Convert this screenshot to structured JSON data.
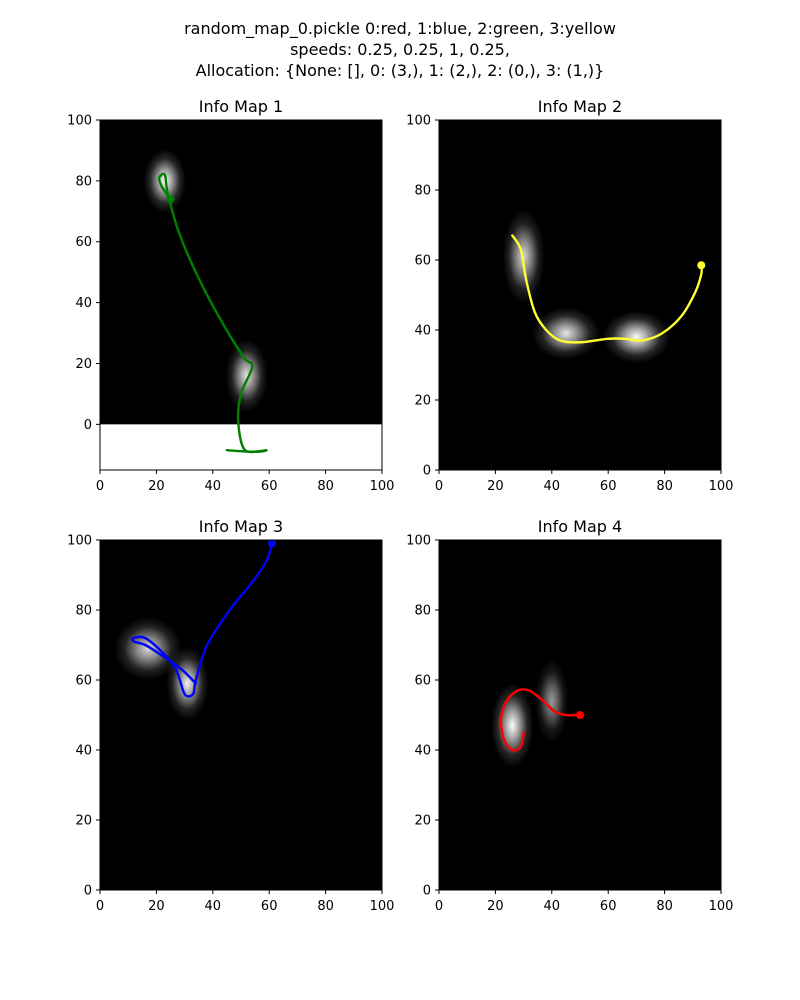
{
  "figure": {
    "suptitle_lines": [
      "random_map_0.pickle    0:red, 1:blue, 2:green, 3:yellow",
      "speeds: 0.25, 0.25, 1, 0.25,",
      "Allocation: {None: [], 0: (3,), 1: (2,), 2: (0,), 3: (1,)}"
    ]
  },
  "chart_data": [
    {
      "type": "heatmap",
      "title": "Info Map 1",
      "xlim": [
        0,
        100
      ],
      "ylim": [
        -15,
        100
      ],
      "map_extent": {
        "x": [
          0,
          100
        ],
        "y": [
          0,
          100
        ]
      },
      "xticks": [
        0,
        20,
        40,
        60,
        80,
        100
      ],
      "yticks": [
        0,
        20,
        40,
        60,
        80,
        100
      ],
      "hotspots": [
        {
          "x": 23,
          "y": 80,
          "sx": 2.5,
          "sy": 3.5,
          "intensity": 1.0
        },
        {
          "x": 52,
          "y": 16,
          "sx": 2.5,
          "sy": 4.0,
          "intensity": 0.9
        }
      ],
      "trajectory": {
        "color": "#008000",
        "x": [
          25,
          22,
          21,
          23,
          24,
          28,
          35,
          43,
          51,
          54,
          50,
          49,
          51,
          56,
          59,
          54,
          45
        ],
        "y": [
          74,
          78,
          81,
          82,
          76,
          63,
          48,
          34,
          22,
          19,
          10,
          1,
          -8,
          -9,
          -8.5,
          -9,
          -8.5
        ],
        "end_marker": {
          "x": 25,
          "y": 74
        }
      },
      "grid": false
    },
    {
      "type": "heatmap",
      "title": "Info Map 2",
      "xlim": [
        0,
        100
      ],
      "ylim": [
        0,
        100
      ],
      "map_extent": {
        "x": [
          0,
          100
        ],
        "y": [
          0,
          100
        ]
      },
      "xticks": [
        0,
        20,
        40,
        60,
        80,
        100
      ],
      "yticks": [
        0,
        20,
        40,
        60,
        80,
        100
      ],
      "hotspots": [
        {
          "x": 30,
          "y": 61,
          "sx": 2.5,
          "sy": 4.5,
          "intensity": 0.85
        },
        {
          "x": 45,
          "y": 39,
          "sx": 4.0,
          "sy": 2.5,
          "intensity": 0.9
        },
        {
          "x": 70,
          "y": 38,
          "sx": 4.0,
          "sy": 2.5,
          "intensity": 1.0
        }
      ],
      "trajectory": {
        "color": "#ffff33",
        "x": [
          26,
          29,
          31,
          34,
          38,
          43,
          50,
          60,
          66,
          72,
          79,
          86,
          91,
          93,
          93
        ],
        "y": [
          67,
          63,
          54,
          45,
          40,
          37,
          36.5,
          37.5,
          37.5,
          37,
          39,
          44,
          51,
          56,
          58.5
        ],
        "end_marker": {
          "x": 93,
          "y": 58.5
        }
      },
      "grid": false
    },
    {
      "type": "heatmap",
      "title": "Info Map 3",
      "xlim": [
        0,
        100
      ],
      "ylim": [
        0,
        100
      ],
      "map_extent": {
        "x": [
          0,
          100
        ],
        "y": [
          0,
          100
        ]
      },
      "xticks": [
        0,
        20,
        40,
        60,
        80,
        100
      ],
      "yticks": [
        0,
        20,
        40,
        60,
        80,
        100
      ],
      "hotspots": [
        {
          "x": 17,
          "y": 69,
          "sx": 4.0,
          "sy": 3.0,
          "intensity": 0.85
        },
        {
          "x": 31,
          "y": 59,
          "sx": 2.5,
          "sy": 3.5,
          "intensity": 0.95
        }
      ],
      "trajectory": {
        "color": "#0000ff",
        "x": [
          34,
          29,
          22,
          16,
          12,
          12,
          16,
          22,
          27,
          30,
          33,
          34,
          38,
          46,
          54,
          59,
          61
        ],
        "y": [
          59,
          63,
          67,
          70,
          71,
          72,
          72,
          68,
          63,
          56,
          56,
          60,
          70,
          80,
          88,
          94,
          99
        ],
        "end_marker": {
          "x": 61,
          "y": 99
        }
      },
      "grid": false
    },
    {
      "type": "heatmap",
      "title": "Info Map 4",
      "xlim": [
        0,
        100
      ],
      "ylim": [
        0,
        100
      ],
      "map_extent": {
        "x": [
          0,
          100
        ],
        "y": [
          0,
          100
        ]
      },
      "xticks": [
        0,
        20,
        40,
        60,
        80,
        100
      ],
      "yticks": [
        0,
        20,
        40,
        60,
        80,
        100
      ],
      "hotspots": [
        {
          "x": 26,
          "y": 47,
          "sx": 2.5,
          "sy": 4.0,
          "intensity": 1.0
        },
        {
          "x": 40,
          "y": 54,
          "sx": 2.0,
          "sy": 4.0,
          "intensity": 0.6
        }
      ],
      "trajectory": {
        "color": "#ff0000",
        "x": [
          30,
          29,
          26,
          23,
          22,
          24,
          28,
          32,
          37,
          41,
          45,
          48,
          50
        ],
        "y": [
          45,
          41,
          40,
          43,
          49,
          54,
          57,
          57,
          54,
          51,
          50,
          50,
          50
        ],
        "end_marker": {
          "x": 50,
          "y": 50
        }
      },
      "grid": false
    }
  ]
}
